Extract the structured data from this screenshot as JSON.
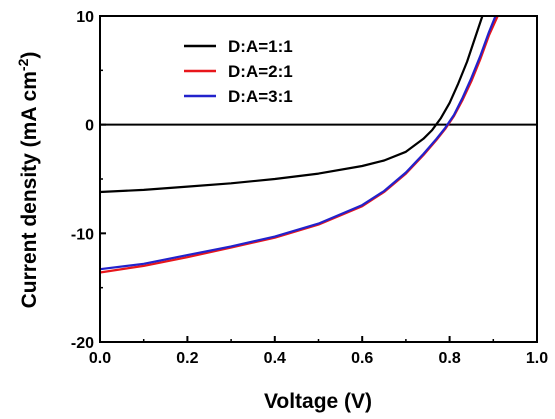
{
  "chart_data": {
    "type": "line",
    "xlabel": "Voltage (V)",
    "ylabel_main": "Current density (mA cm",
    "ylabel_sup": "-2",
    "ylabel_close": ")",
    "xlim": [
      0.0,
      1.0
    ],
    "ylim": [
      -20,
      10
    ],
    "x_ticks": [
      0.0,
      0.2,
      0.4,
      0.6,
      0.8,
      1.0
    ],
    "x_tick_labels": [
      "0.0",
      "0.2",
      "0.4",
      "0.6",
      "0.8",
      "1.0"
    ],
    "y_ticks": [
      -20,
      -10,
      0,
      10
    ],
    "y_tick_labels": [
      "-20",
      "-10",
      "0",
      "10"
    ],
    "grid": false,
    "zero_line": true,
    "legend_position": "top-right",
    "series": [
      {
        "name": "D:A=1:1",
        "color": "#000000",
        "x": [
          0.0,
          0.1,
          0.2,
          0.3,
          0.4,
          0.5,
          0.6,
          0.65,
          0.7,
          0.74,
          0.76,
          0.78,
          0.8,
          0.82,
          0.84,
          0.86,
          0.875
        ],
        "y": [
          -6.2,
          -6.0,
          -5.7,
          -5.4,
          -5.0,
          -4.5,
          -3.8,
          -3.3,
          -2.5,
          -1.3,
          -0.5,
          0.6,
          2.0,
          3.8,
          5.8,
          8.2,
          10.0
        ]
      },
      {
        "name": "D:A=2:1",
        "color": "#e8161b",
        "x": [
          0.0,
          0.1,
          0.2,
          0.3,
          0.4,
          0.5,
          0.6,
          0.65,
          0.7,
          0.74,
          0.77,
          0.79,
          0.81,
          0.83,
          0.85,
          0.87,
          0.89,
          0.91
        ],
        "y": [
          -13.6,
          -13.0,
          -12.2,
          -11.3,
          -10.4,
          -9.2,
          -7.5,
          -6.2,
          -4.5,
          -2.8,
          -1.4,
          -0.4,
          0.8,
          2.3,
          4.0,
          6.0,
          8.2,
          10.0
        ]
      },
      {
        "name": "D:A=3:1",
        "color": "#2222cc",
        "x": [
          0.0,
          0.1,
          0.2,
          0.3,
          0.4,
          0.5,
          0.6,
          0.65,
          0.7,
          0.74,
          0.77,
          0.79,
          0.81,
          0.83,
          0.85,
          0.87,
          0.89,
          0.905
        ],
        "y": [
          -13.3,
          -12.8,
          -12.0,
          -11.2,
          -10.3,
          -9.1,
          -7.4,
          -6.1,
          -4.4,
          -2.7,
          -1.3,
          -0.3,
          0.9,
          2.5,
          4.3,
          6.3,
          8.5,
          10.0
        ]
      }
    ]
  }
}
